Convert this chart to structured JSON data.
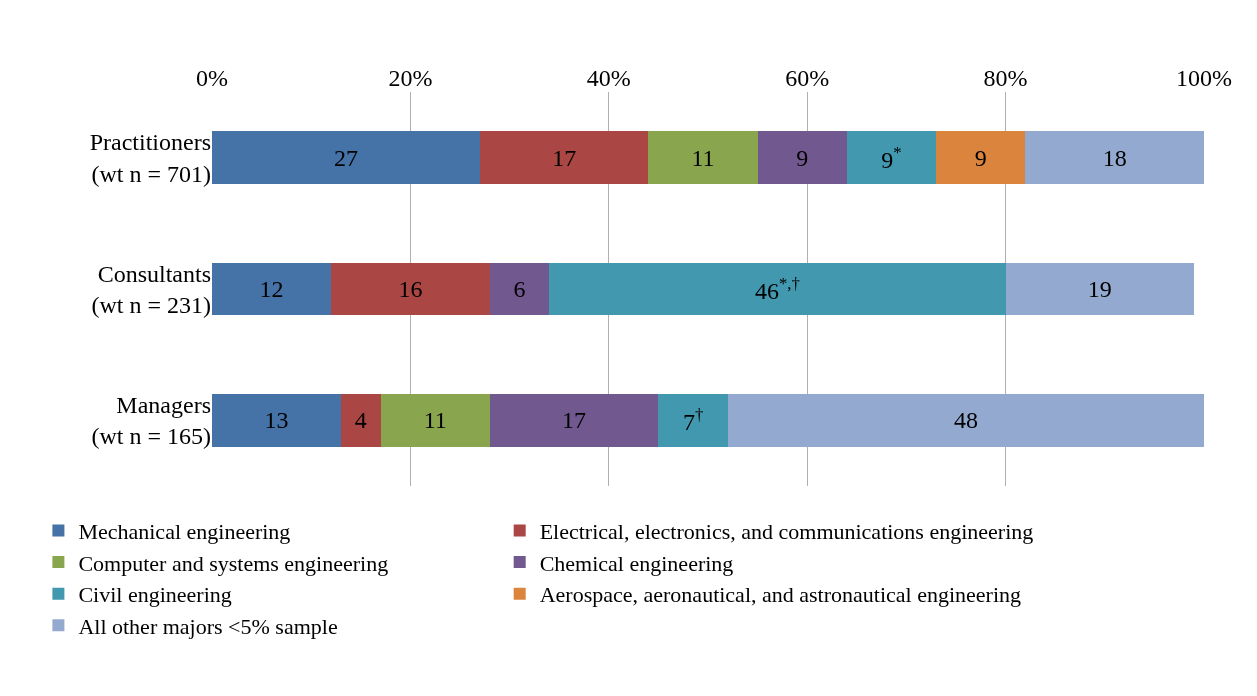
{
  "chart_data": {
    "type": "bar",
    "orientation": "horizontal",
    "stacked": true,
    "categories": [
      "Practitioners\n(wt n = 701)",
      "Consultants\n(wt n = 231)",
      "Managers\n(wt n = 165)"
    ],
    "series": [
      {
        "name": "Mechanical engineering",
        "color": "#4572a7",
        "values": [
          27,
          12,
          13
        ],
        "value_labels": [
          "27",
          "12",
          "13"
        ]
      },
      {
        "name": "Electrical, electronics, and communications engineering",
        "color": "#aa4643",
        "values": [
          17,
          16,
          4
        ],
        "value_labels": [
          "17",
          "16",
          "4"
        ]
      },
      {
        "name": "Computer and systems engineering",
        "color": "#89a54e",
        "values": [
          11,
          null,
          11
        ],
        "value_labels": [
          "11",
          null,
          "11"
        ]
      },
      {
        "name": "Chemical engineering",
        "color": "#71588f",
        "values": [
          9,
          6,
          17
        ],
        "value_labels": [
          "9",
          "6",
          "17"
        ]
      },
      {
        "name": "Civil engineering",
        "color": "#4198af",
        "values": [
          9,
          46,
          7
        ],
        "value_labels": [
          "9$^{*}$",
          "46$^{*,†}$",
          "7$^{†}$"
        ]
      },
      {
        "name": "Aerospace, aeronautical, and astronautical engineering",
        "color": "#db843d",
        "values": [
          9,
          null,
          null
        ],
        "value_labels": [
          "9",
          null,
          null
        ]
      },
      {
        "name": "All other majors <5% sample",
        "color": "#93a9cf",
        "values": [
          18,
          19,
          48
        ],
        "value_labels": [
          "18",
          "19",
          "48"
        ]
      }
    ],
    "xlim": [
      0,
      100
    ],
    "xticks": [
      {
        "value": 0,
        "label": "0%"
      },
      {
        "value": 20,
        "label": "20%"
      },
      {
        "value": 40,
        "label": "40%"
      },
      {
        "value": 60,
        "label": "60%"
      },
      {
        "value": 80,
        "label": "80%"
      },
      {
        "value": 100,
        "label": "100%"
      }
    ],
    "grid": "x",
    "legend": "bottom"
  }
}
